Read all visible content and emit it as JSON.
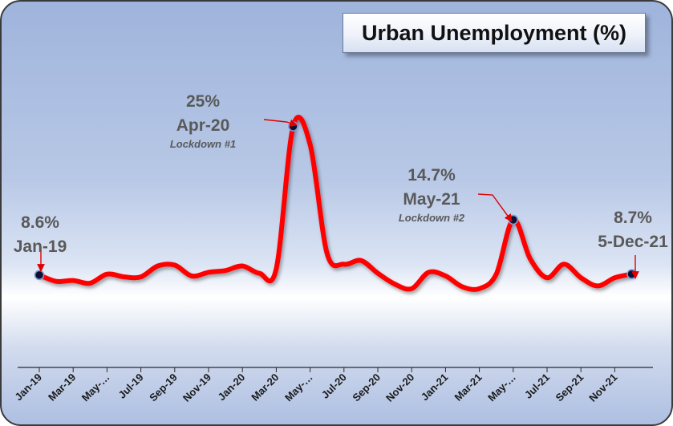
{
  "chart_data": {
    "type": "line",
    "title": "Urban Unemployment (%)",
    "xlabel": "",
    "ylabel": "",
    "ylim": [
      0,
      30
    ],
    "grid": false,
    "legend": "none",
    "x_tick_labels": [
      "Jan-19",
      "Mar-19",
      "May-…",
      "Jul-19",
      "Sep-19",
      "Nov-19",
      "Jan-20",
      "Mar-20",
      "May-…",
      "Jul-20",
      "Sep-20",
      "Nov-20",
      "Jan-21",
      "Mar-21",
      "May-…",
      "Jul-21",
      "Sep-21",
      "Nov-21"
    ],
    "series": [
      {
        "color": "#ff0000",
        "x": [
          "Jan-19",
          "Feb-19",
          "Mar-19",
          "Apr-19",
          "May-19",
          "Jun-19",
          "Jul-19",
          "Aug-19",
          "Sep-19",
          "Oct-19",
          "Nov-19",
          "Dec-19",
          "Jan-20",
          "Feb-20",
          "Mar-20",
          "Apr-20",
          "May-20",
          "Jun-20",
          "Jul-20",
          "Aug-20",
          "Sep-20",
          "Oct-20",
          "Nov-20",
          "Dec-20",
          "Jan-21",
          "Feb-21",
          "Mar-21",
          "Apr-21",
          "May-21",
          "Jun-21",
          "Jul-21",
          "Aug-21",
          "Sep-21",
          "Oct-21",
          "Nov-21",
          "5-Dec-21"
        ],
        "values": [
          8.6,
          7.9,
          8.0,
          7.7,
          8.7,
          8.4,
          8.4,
          9.6,
          9.7,
          8.5,
          8.9,
          9.1,
          9.6,
          8.8,
          9.3,
          25.0,
          23.0,
          11.0,
          9.8,
          10.2,
          8.8,
          7.6,
          7.1,
          8.9,
          8.5,
          7.3,
          7.1,
          8.7,
          14.7,
          10.4,
          8.3,
          9.8,
          8.3,
          7.4,
          8.3,
          8.7
        ]
      }
    ],
    "annotations": [
      {
        "value": "8.6%",
        "date": "Jan-19",
        "note": ""
      },
      {
        "value": "25%",
        "date": "Apr-20",
        "note": "Lockdown #1"
      },
      {
        "value": "14.7%",
        "date": "May-21",
        "note": "Lockdown #2"
      },
      {
        "value": "8.7%",
        "date": "5-Dec-21",
        "note": ""
      }
    ]
  }
}
